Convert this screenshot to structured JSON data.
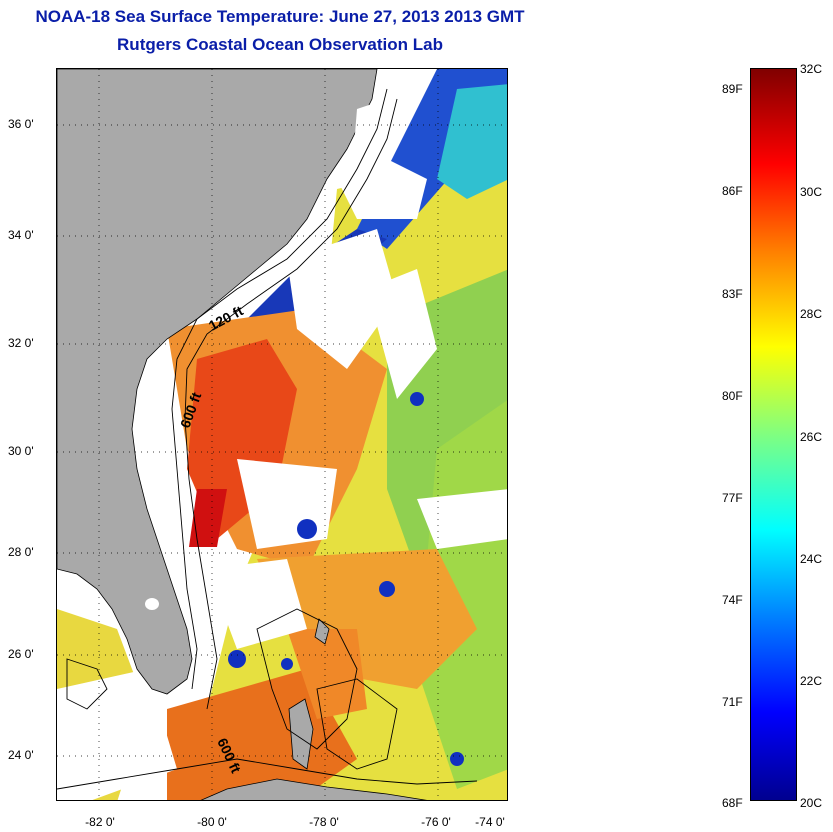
{
  "title": {
    "line1": "NOAA-18 Sea Surface Temperature:  June 27, 2013 2013 GMT",
    "line2": "Rutgers Coastal Ocean Observation Lab"
  },
  "map": {
    "lat_ticks": [
      "36 0'",
      "34 0'",
      "32 0'",
      "30 0'",
      "28 0'",
      "26 0'",
      "24 0'"
    ],
    "lon_ticks": [
      "-82 0'",
      "-80 0'",
      "-78 0'",
      "-76 0'",
      "-74 0'"
    ],
    "contour_labels": {
      "shelf_120": "120 ft",
      "shelf_600_north": "600 ft",
      "shelf_600_south": "600 ft"
    },
    "colors": {
      "land": "#a9a9a9",
      "cloud_mask": "#ffffff",
      "warm_core": "#e02a10",
      "gulf_stream": "#f08020",
      "mid": "#e8e040",
      "cool": "#80d060",
      "cold": "#1030c0"
    }
  },
  "colorbar": {
    "fahrenheit": [
      "89F",
      "86F",
      "83F",
      "80F",
      "77F",
      "74F",
      "71F",
      "68F"
    ],
    "celsius": [
      "32C",
      "30C",
      "28C",
      "26C",
      "24C",
      "22C",
      "20C"
    ]
  }
}
